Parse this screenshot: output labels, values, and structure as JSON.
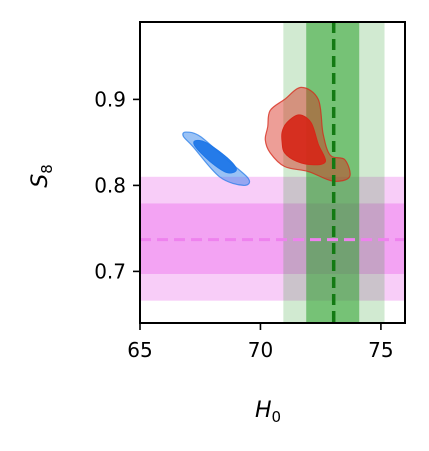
{
  "chart_data": {
    "type": "contour",
    "xlabel": "H",
    "xlabel_sub": "0",
    "ylabel": "S",
    "ylabel_sub": "8",
    "xlim": [
      65,
      76
    ],
    "ylim": [
      0.64,
      0.99
    ],
    "x_ticks": [
      {
        "value": 65,
        "label": "65"
      },
      {
        "value": 70,
        "label": "70"
      },
      {
        "value": 75,
        "label": "75"
      }
    ],
    "y_ticks": [
      {
        "value": 0.7,
        "label": "0.7"
      },
      {
        "value": 0.8,
        "label": "0.8"
      },
      {
        "value": 0.9,
        "label": "0.9"
      }
    ],
    "grid": false,
    "legend": "none",
    "vertical_bands": {
      "color": "#2ca02c",
      "center": 73.04,
      "line_style": "dashed",
      "line_color": "#137a13",
      "inner": [
        71.9,
        74.1
      ],
      "outer": [
        70.95,
        75.15
      ]
    },
    "horizontal_bands": {
      "color": "#ee82ee",
      "center": 0.737,
      "line_style": "dashed",
      "inner": [
        0.697,
        0.779
      ],
      "outer": [
        0.666,
        0.81
      ]
    },
    "blue_contours": {
      "color": "#1f77e8",
      "center": [
        67.9,
        0.841
      ],
      "outer_90": [
        [
          66.9,
          0.862
        ],
        [
          67.5,
          0.857
        ],
        [
          68.6,
          0.83
        ],
        [
          69.5,
          0.808
        ],
        [
          69.3,
          0.8
        ],
        [
          68.3,
          0.81
        ],
        [
          67.2,
          0.845
        ],
        [
          66.8,
          0.857
        ]
      ],
      "inner_68": [
        [
          67.3,
          0.852
        ],
        [
          67.8,
          0.849
        ],
        [
          68.7,
          0.83
        ],
        [
          69.0,
          0.818
        ],
        [
          68.6,
          0.815
        ],
        [
          67.9,
          0.828
        ],
        [
          67.3,
          0.845
        ]
      ]
    },
    "red_contours": {
      "color": "#d62718",
      "center": [
        71.4,
        0.848
      ],
      "outer_90": [
        [
          70.3,
          0.868
        ],
        [
          70.4,
          0.887
        ],
        [
          71.0,
          0.9
        ],
        [
          71.7,
          0.914
        ],
        [
          72.4,
          0.9
        ],
        [
          72.6,
          0.86
        ],
        [
          72.9,
          0.835
        ],
        [
          73.5,
          0.83
        ],
        [
          73.7,
          0.81
        ],
        [
          73.0,
          0.805
        ],
        [
          72.0,
          0.816
        ],
        [
          71.0,
          0.822
        ],
        [
          70.4,
          0.838
        ],
        [
          70.2,
          0.853
        ]
      ],
      "inner_68": [
        [
          70.9,
          0.862
        ],
        [
          71.1,
          0.873
        ],
        [
          71.6,
          0.882
        ],
        [
          72.1,
          0.873
        ],
        [
          72.4,
          0.848
        ],
        [
          72.7,
          0.828
        ],
        [
          72.2,
          0.824
        ],
        [
          71.5,
          0.828
        ],
        [
          71.0,
          0.838
        ],
        [
          70.9,
          0.85
        ]
      ]
    }
  }
}
